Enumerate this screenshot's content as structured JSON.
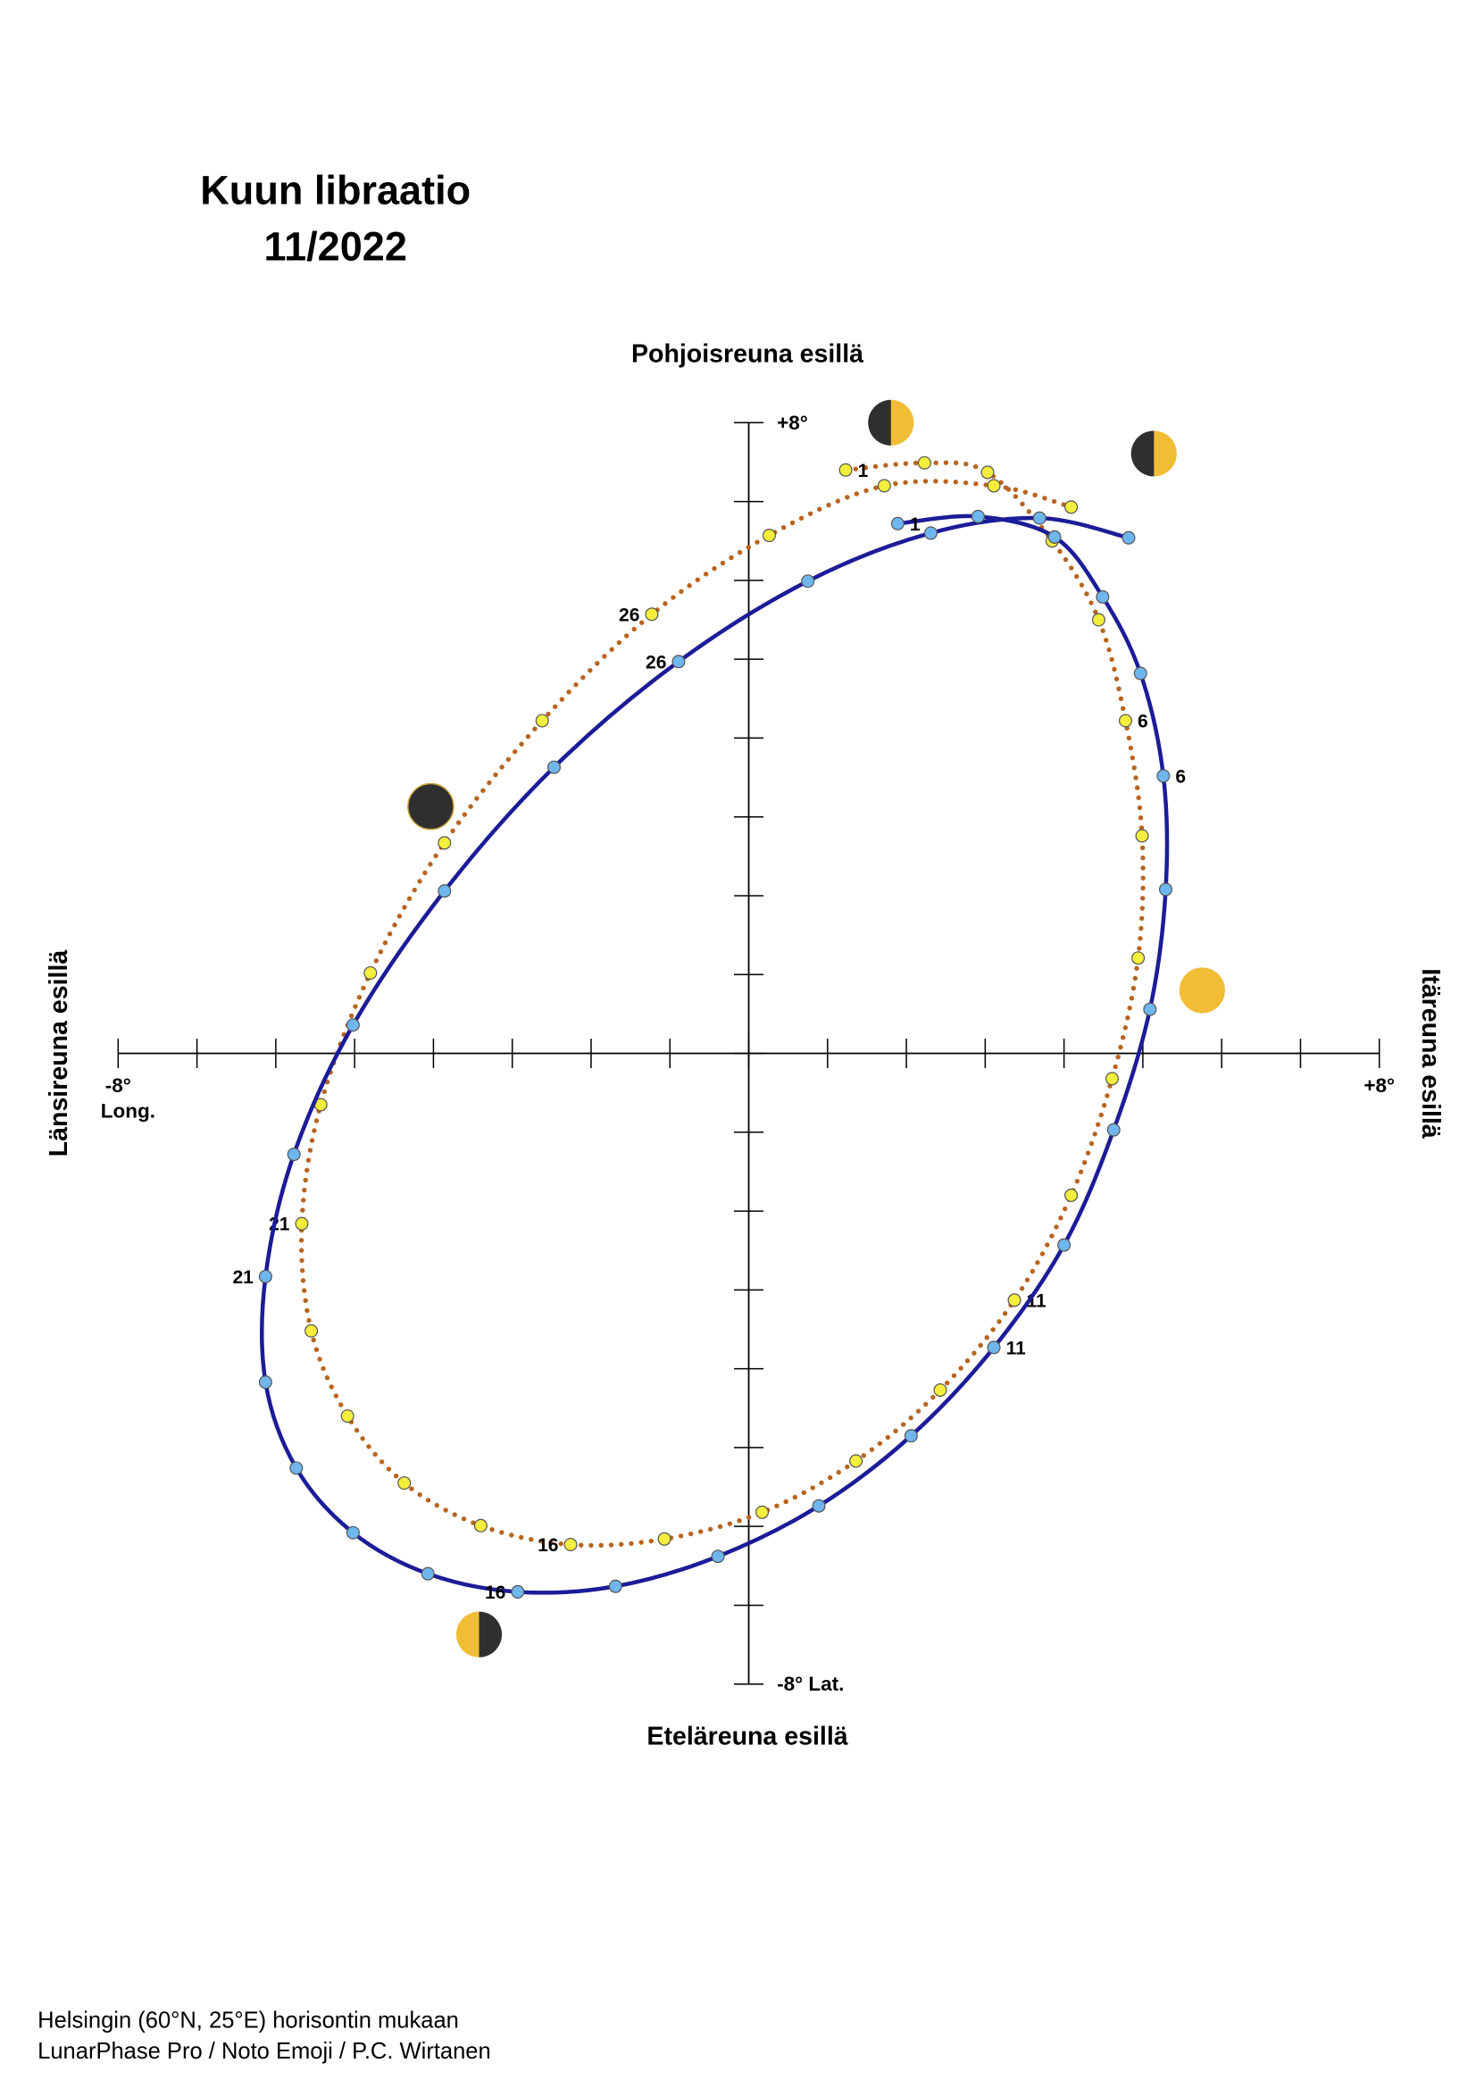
{
  "chart_data": {
    "type": "line",
    "title": "Kuun libraatio",
    "subtitle": "11/2022",
    "top_label": "Pohjoisreuna esillä",
    "bottom_label": "Eteläreuna esillä",
    "left_label": "Länsireuna esillä",
    "right_label": "Itäreuna esillä",
    "xlabel": "Long.",
    "xlim": [
      -8,
      8
    ],
    "ylim": [
      -8,
      8
    ],
    "xticks": [
      -8,
      -7,
      -6,
      -5,
      -4,
      -3,
      -2,
      -1,
      0,
      1,
      2,
      3,
      4,
      5,
      6,
      7,
      8
    ],
    "yticks": [
      -8,
      -7,
      -6,
      -5,
      -4,
      -3,
      -2,
      -1,
      0,
      1,
      2,
      3,
      4,
      5,
      6,
      7,
      8
    ],
    "xtick_labels": [
      {
        "value": -8,
        "label": "-8°"
      },
      {
        "value": 8,
        "label": "+8°"
      }
    ],
    "ytick_labels": [
      {
        "value": 8,
        "label": "+8°"
      },
      {
        "value": -8,
        "label": "-8° Lat."
      }
    ],
    "labels": [
      "1",
      null,
      null,
      null,
      null,
      "6",
      null,
      null,
      null,
      null,
      "11",
      null,
      null,
      null,
      null,
      "16",
      null,
      null,
      null,
      null,
      "21",
      null,
      null,
      null,
      null,
      "26",
      null,
      null,
      null,
      null
    ],
    "series": [
      {
        "style": "dotted",
        "color": "#b8641e",
        "marker_color": "#f4ee3c",
        "x": [
          1.23,
          2.23,
          3.03,
          3.85,
          4.44,
          4.78,
          4.99,
          4.94,
          4.61,
          4.09,
          3.37,
          2.43,
          1.36,
          0.17,
          -1.07,
          -2.26,
          -3.4,
          -4.37,
          -5.09,
          -5.55,
          -5.67,
          -5.43,
          -4.8,
          -3.86,
          -2.62,
          -1.23,
          0.26,
          1.72,
          3.11,
          4.09
        ],
        "y": [
          7.4,
          7.49,
          7.37,
          6.5,
          5.5,
          4.22,
          2.76,
          1.21,
          -0.32,
          -1.8,
          -3.13,
          -4.27,
          -5.17,
          -5.82,
          -6.16,
          -6.23,
          -5.99,
          -5.45,
          -4.6,
          -3.52,
          -2.16,
          -0.65,
          1.02,
          2.67,
          4.22,
          5.57,
          6.57,
          7.2,
          7.2,
          6.93
        ]
      },
      {
        "style": "solid",
        "color": "#1c1c98",
        "marker_color": "#6fb6ee",
        "x": [
          1.89,
          2.91,
          3.88,
          4.49,
          4.97,
          5.26,
          5.29,
          5.09,
          4.63,
          4.0,
          3.11,
          2.06,
          0.89,
          -0.39,
          -1.69,
          -2.93,
          -4.07,
          -5.02,
          -5.74,
          -6.13,
          -6.13,
          -5.77,
          -5.02,
          -3.86,
          -2.47,
          -0.89,
          0.75,
          2.31,
          3.69,
          4.82
        ],
        "y": [
          6.72,
          6.81,
          6.55,
          5.79,
          4.82,
          3.52,
          2.08,
          0.56,
          -0.97,
          -2.43,
          -3.73,
          -4.85,
          -5.74,
          -6.38,
          -6.76,
          -6.83,
          -6.6,
          -6.08,
          -5.26,
          -4.17,
          -2.83,
          -1.28,
          0.36,
          2.06,
          3.63,
          4.97,
          5.99,
          6.6,
          6.79,
          6.54
        ]
      }
    ]
  },
  "footer": {
    "lines": [
      "Helsingin (60°N, 25°E) horisontin mukaan",
      "LunarPhase Pro / Noto Emoji / P.C. Wirtanen"
    ]
  }
}
